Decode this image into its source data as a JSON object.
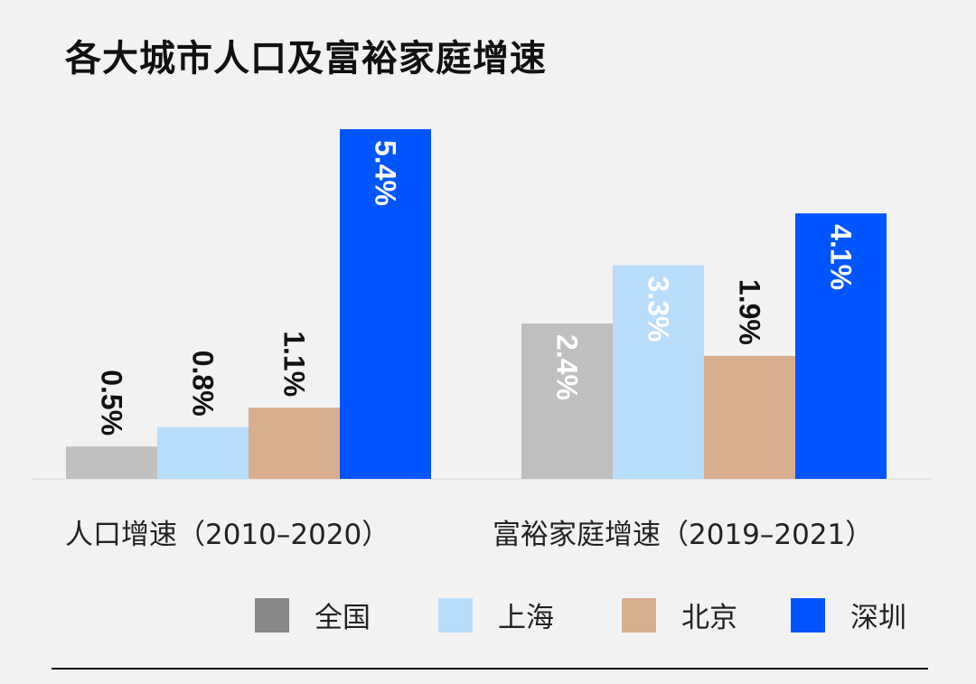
{
  "chart_data": {
    "type": "bar",
    "title": "各大城市人口及富裕家庭增速",
    "categories": [
      "人口增速（2010–2020）",
      "富裕家庭增速（2019–2021）"
    ],
    "series": [
      {
        "name": "全国",
        "values": [
          0.5,
          2.4
        ],
        "labels": [
          "0.5%",
          "2.4%"
        ],
        "color": "#c0c0c0",
        "legend_color": "#888888"
      },
      {
        "name": "上海",
        "values": [
          0.8,
          3.3
        ],
        "labels": [
          "0.8%",
          "3.3%"
        ],
        "color": "#b8dcfb",
        "legend_color": "#b8dcfb"
      },
      {
        "name": "北京",
        "values": [
          1.1,
          1.9
        ],
        "labels": [
          "1.1%",
          "1.9%"
        ],
        "color": "#d9ae8f",
        "legend_color": "#d9ae8f"
      },
      {
        "name": "深圳",
        "values": [
          5.4,
          4.1
        ],
        "labels": [
          "5.4%",
          "4.1%"
        ],
        "color": "#0055ff",
        "legend_color": "#0055ff"
      }
    ],
    "unit": "%",
    "ylim": [
      0,
      5.4
    ],
    "grid": false,
    "legend_position": "bottom-right",
    "data_labels": "rotated"
  }
}
